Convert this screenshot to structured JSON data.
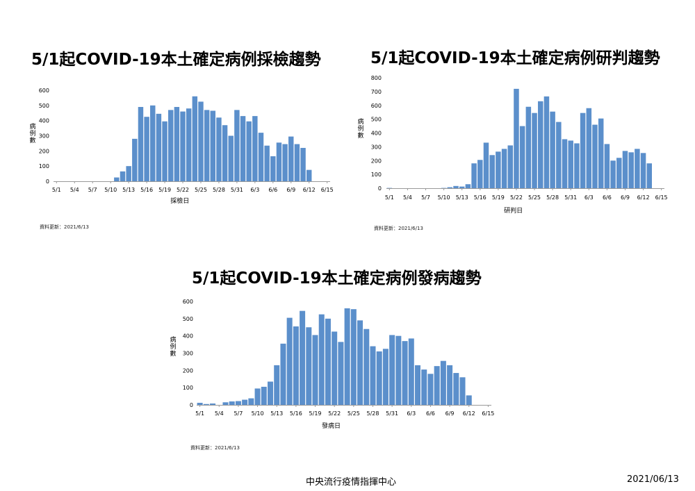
{
  "footer": {
    "org": "中央流行疫情指揮中心",
    "date": "2021/06/13"
  },
  "chart_data": [
    {
      "type": "bar",
      "title": "5/1起COVID-19本土確定病例採檢趨勢",
      "xlabel": "採檢日",
      "ylabel": "病例數",
      "ylim": [
        0,
        600
      ],
      "yticks": [
        0,
        100,
        200,
        300,
        400,
        500,
        600
      ],
      "note": "資料更新：2021/6/13",
      "color": "#5b8fcb",
      "categories": [
        "5/1",
        "5/2",
        "5/3",
        "5/4",
        "5/5",
        "5/6",
        "5/7",
        "5/8",
        "5/9",
        "5/10",
        "5/11",
        "5/12",
        "5/13",
        "5/14",
        "5/15",
        "5/16",
        "5/17",
        "5/18",
        "5/19",
        "5/20",
        "5/21",
        "5/22",
        "5/23",
        "5/24",
        "5/25",
        "5/26",
        "5/27",
        "5/28",
        "5/29",
        "5/30",
        "5/31",
        "6/1",
        "6/2",
        "6/3",
        "6/4",
        "6/5",
        "6/6",
        "6/7",
        "6/8",
        "6/9",
        "6/10",
        "6/11",
        "6/12",
        "6/13",
        "6/14",
        "6/15"
      ],
      "tick_labels": [
        "5/1",
        "5/4",
        "5/7",
        "5/10",
        "5/13",
        "5/16",
        "5/19",
        "5/22",
        "5/25",
        "5/28",
        "5/31",
        "6/3",
        "6/6",
        "6/9",
        "6/12",
        "6/15"
      ],
      "values": [
        0,
        0,
        0,
        0,
        0,
        0,
        0,
        0,
        0,
        0,
        25,
        65,
        100,
        280,
        490,
        425,
        500,
        445,
        395,
        470,
        490,
        460,
        480,
        560,
        525,
        470,
        465,
        420,
        370,
        300,
        470,
        430,
        395,
        430,
        320,
        235,
        165,
        255,
        245,
        295,
        245,
        220,
        75,
        0,
        0,
        0
      ]
    },
    {
      "type": "bar",
      "title": "5/1起COVID-19本土確定病例研判趨勢",
      "xlabel": "研判日",
      "ylabel": "病例數",
      "ylim": [
        0,
        800
      ],
      "yticks": [
        0,
        100,
        200,
        300,
        400,
        500,
        600,
        700,
        800
      ],
      "note": "資料更新：2021/6/13",
      "color": "#5b8fcb",
      "categories": [
        "5/1",
        "5/2",
        "5/3",
        "5/4",
        "5/5",
        "5/6",
        "5/7",
        "5/8",
        "5/9",
        "5/10",
        "5/11",
        "5/12",
        "5/13",
        "5/14",
        "5/15",
        "5/16",
        "5/17",
        "5/18",
        "5/19",
        "5/20",
        "5/21",
        "5/22",
        "5/23",
        "5/24",
        "5/25",
        "5/26",
        "5/27",
        "5/28",
        "5/29",
        "5/30",
        "5/31",
        "6/1",
        "6/2",
        "6/3",
        "6/4",
        "6/5",
        "6/6",
        "6/7",
        "6/8",
        "6/9",
        "6/10",
        "6/11",
        "6/12",
        "6/13",
        "6/14",
        "6/15"
      ],
      "tick_labels": [
        "5/1",
        "5/4",
        "5/7",
        "5/10",
        "5/13",
        "5/16",
        "5/19",
        "5/22",
        "5/25",
        "5/28",
        "5/31",
        "6/3",
        "6/6",
        "6/9",
        "6/12",
        "6/15"
      ],
      "values": [
        2,
        0,
        0,
        0,
        0,
        0,
        0,
        0,
        0,
        2,
        7,
        16,
        12,
        29,
        180,
        205,
        330,
        240,
        265,
        285,
        310,
        720,
        450,
        590,
        545,
        630,
        665,
        555,
        480,
        355,
        345,
        325,
        545,
        580,
        460,
        505,
        320,
        200,
        220,
        270,
        260,
        285,
        255,
        180,
        0,
        0
      ]
    },
    {
      "type": "bar",
      "title": "5/1起COVID-19本土確定病例發病趨勢",
      "xlabel": "發病日",
      "ylabel": "病例數",
      "ylim": [
        0,
        600
      ],
      "yticks": [
        0,
        100,
        200,
        300,
        400,
        500,
        600
      ],
      "note": "資料更新：2021/6/13",
      "color": "#5b8fcb",
      "categories": [
        "5/1",
        "5/2",
        "5/3",
        "5/4",
        "5/5",
        "5/6",
        "5/7",
        "5/8",
        "5/9",
        "5/10",
        "5/11",
        "5/12",
        "5/13",
        "5/14",
        "5/15",
        "5/16",
        "5/17",
        "5/18",
        "5/19",
        "5/20",
        "5/21",
        "5/22",
        "5/23",
        "5/24",
        "5/25",
        "5/26",
        "5/27",
        "5/28",
        "5/29",
        "5/30",
        "5/31",
        "6/1",
        "6/2",
        "6/3",
        "6/4",
        "6/5",
        "6/6",
        "6/7",
        "6/8",
        "6/9",
        "6/10",
        "6/11",
        "6/12",
        "6/13",
        "6/14",
        "6/15"
      ],
      "tick_labels": [
        "5/1",
        "5/4",
        "5/7",
        "5/10",
        "5/13",
        "5/16",
        "5/19",
        "5/22",
        "5/25",
        "5/28",
        "5/31",
        "6/3",
        "6/6",
        "6/9",
        "6/12",
        "6/15"
      ],
      "values": [
        12,
        5,
        8,
        0,
        15,
        20,
        22,
        30,
        38,
        95,
        105,
        135,
        230,
        355,
        505,
        455,
        545,
        450,
        405,
        525,
        500,
        425,
        365,
        560,
        555,
        490,
        440,
        340,
        310,
        325,
        405,
        400,
        370,
        385,
        230,
        205,
        180,
        225,
        255,
        230,
        185,
        160,
        55,
        0,
        0,
        0
      ]
    }
  ]
}
